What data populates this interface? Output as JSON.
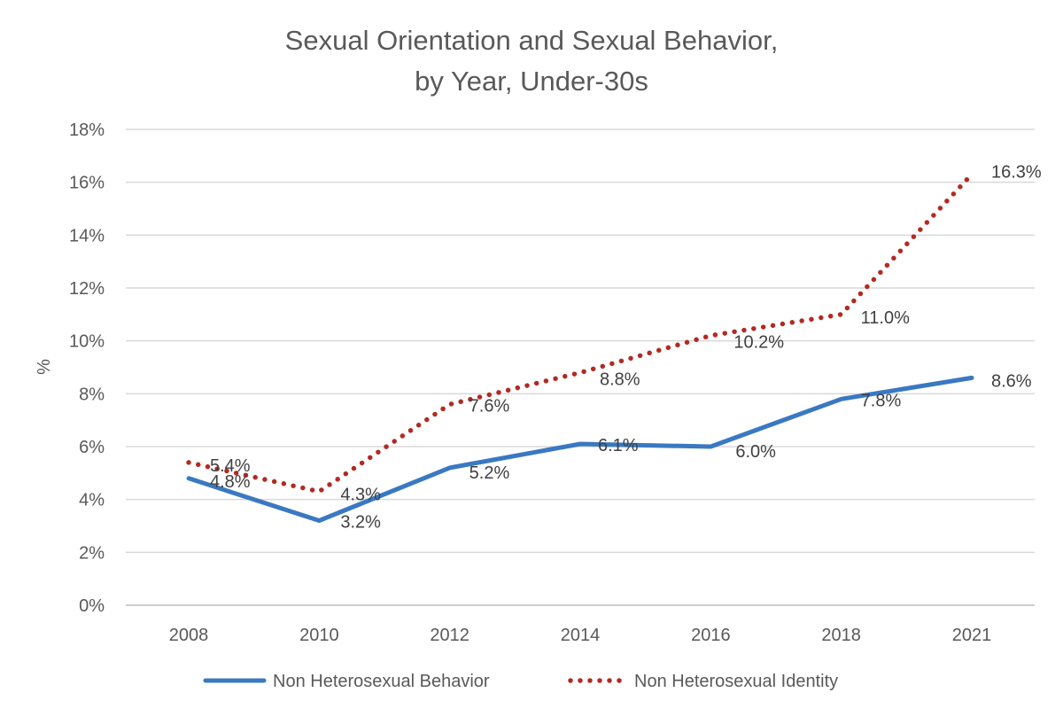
{
  "chart_data": {
    "type": "line",
    "title_lines": [
      "Sexual Orientation and Sexual Behavior,",
      "by Year, Under-30s"
    ],
    "ylabel": "%",
    "xlabel": "",
    "categories": [
      "2008",
      "2010",
      "2012",
      "2014",
      "2016",
      "2018",
      "2021"
    ],
    "ylim": [
      0,
      18
    ],
    "yticks": [
      0,
      2,
      4,
      6,
      8,
      10,
      12,
      14,
      16,
      18
    ],
    "ytick_labels": [
      "0%",
      "2%",
      "4%",
      "6%",
      "8%",
      "10%",
      "12%",
      "14%",
      "16%",
      "18%"
    ],
    "grid": true,
    "legend_position": "bottom",
    "series": [
      {
        "name": "Non Heterosexual Behavior",
        "values": [
          4.8,
          3.2,
          5.2,
          6.1,
          6.0,
          7.8,
          8.6
        ],
        "labels": [
          "4.8%",
          "3.2%",
          "5.2%",
          "6.1%",
          "6.0%",
          "7.8%",
          "8.6%"
        ],
        "color": "#3a78c2",
        "style": "solid"
      },
      {
        "name": "Non Heterosexual Identity",
        "values": [
          5.4,
          4.3,
          7.6,
          8.8,
          10.2,
          11.0,
          16.3
        ],
        "labels": [
          "5.4%",
          "4.3%",
          "7.6%",
          "8.8%",
          "10.2%",
          "11.0%",
          "16.3%"
        ],
        "color": "#b22a22",
        "style": "dotted"
      }
    ]
  }
}
